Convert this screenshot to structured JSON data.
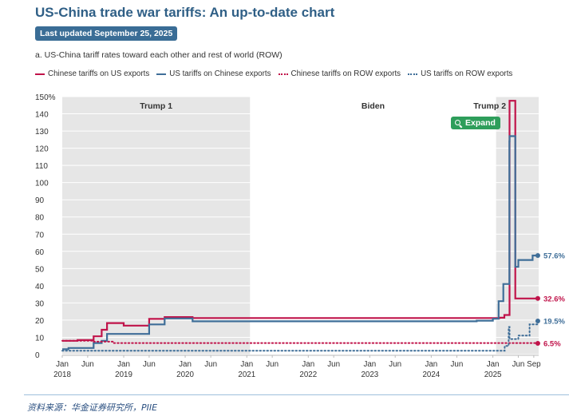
{
  "header": {
    "title": "US-China trade war tariffs: An up-to-date chart",
    "badge": "Last updated September 25, 2025",
    "subtitle": "a. US-China tariff rates toward each other and rest of world (ROW)"
  },
  "expand_button": {
    "label": "Expand",
    "icon": "magnifier-icon"
  },
  "source": "资料来源：华金证券研究所，PIIE",
  "colors": {
    "red": "#c0134a",
    "blue": "#3f6e98",
    "shade": "#e6e6e6",
    "title": "#2f5f86",
    "expand_bg": "#2e9e5b"
  },
  "chart_data": {
    "type": "line",
    "title": "US-China tariff rates toward each other and rest of world (ROW)",
    "ylim": [
      0,
      150
    ],
    "yticks": [
      0,
      10,
      20,
      30,
      40,
      50,
      60,
      70,
      80,
      90,
      100,
      110,
      120,
      130,
      140,
      150
    ],
    "ytick_labels": [
      "0",
      "10",
      "20",
      "30",
      "40",
      "50",
      "60",
      "70",
      "80",
      "90",
      "100",
      "110",
      "120",
      "130",
      "140",
      "150%"
    ],
    "xlim": [
      "2018-01-01",
      "2025-09-30"
    ],
    "x_ticks": [
      {
        "date": "2018-01-01",
        "label": "Jan",
        "year": "2018"
      },
      {
        "date": "2018-06-01",
        "label": "Jun",
        "year": ""
      },
      {
        "date": "2019-01-01",
        "label": "Jan",
        "year": "2019"
      },
      {
        "date": "2019-06-01",
        "label": "Jun",
        "year": ""
      },
      {
        "date": "2020-01-01",
        "label": "Jan",
        "year": "2020"
      },
      {
        "date": "2020-06-01",
        "label": "Jun",
        "year": ""
      },
      {
        "date": "2021-01-01",
        "label": "Jan",
        "year": "2021"
      },
      {
        "date": "2021-06-01",
        "label": "Jun",
        "year": ""
      },
      {
        "date": "2022-01-01",
        "label": "Jan",
        "year": "2022"
      },
      {
        "date": "2022-06-01",
        "label": "Jun",
        "year": ""
      },
      {
        "date": "2023-01-01",
        "label": "Jan",
        "year": "2023"
      },
      {
        "date": "2023-06-01",
        "label": "Jun",
        "year": ""
      },
      {
        "date": "2024-01-01",
        "label": "Jan",
        "year": "2024"
      },
      {
        "date": "2024-06-01",
        "label": "Jun",
        "year": ""
      },
      {
        "date": "2025-01-01",
        "label": "Jan",
        "year": "2025"
      },
      {
        "date": "2025-06-01",
        "label": "Jun",
        "year": ""
      },
      {
        "date": "2025-09-01",
        "label": "Sep",
        "year": ""
      }
    ],
    "periods": [
      {
        "name": "Trump 1",
        "start": "2018-01-01",
        "end": "2021-01-20",
        "shaded": true
      },
      {
        "name": "Biden",
        "start": "2021-01-20",
        "end": "2025-01-20",
        "shaded": false
      },
      {
        "name": "Trump 2",
        "start": "2025-01-20",
        "end": "2025-09-30",
        "shaded": true
      }
    ],
    "legend": "top",
    "grid": true,
    "series": [
      {
        "name": "Chinese tariffs on US exports",
        "style": "solid",
        "color": "#c0134a",
        "end_label": "32.6%",
        "points": [
          [
            "2018-01-01",
            8.0
          ],
          [
            "2018-04-02",
            8.4
          ],
          [
            "2018-07-06",
            10.6
          ],
          [
            "2018-08-23",
            14.4
          ],
          [
            "2018-09-24",
            18.3
          ],
          [
            "2019-01-01",
            16.8
          ],
          [
            "2019-06-01",
            20.7
          ],
          [
            "2019-09-01",
            21.8
          ],
          [
            "2019-12-31",
            21.8
          ],
          [
            "2020-02-14",
            21.2
          ],
          [
            "2025-02-10",
            21.4
          ],
          [
            "2025-03-10",
            23.0
          ],
          [
            "2025-04-04",
            23.0
          ],
          [
            "2025-04-10",
            147.6
          ],
          [
            "2025-05-14",
            147.6
          ],
          [
            "2025-05-14",
            32.6
          ],
          [
            "2025-09-25",
            32.6
          ]
        ]
      },
      {
        "name": "US tariffs on Chinese exports",
        "style": "solid",
        "color": "#3f6e98",
        "end_label": "57.6%",
        "points": [
          [
            "2018-01-01",
            3.1
          ],
          [
            "2018-02-07",
            3.8
          ],
          [
            "2018-07-06",
            6.7
          ],
          [
            "2018-08-23",
            8.0
          ],
          [
            "2018-09-24",
            12.0
          ],
          [
            "2019-06-01",
            17.5
          ],
          [
            "2019-09-01",
            21.0
          ],
          [
            "2020-02-14",
            19.3
          ],
          [
            "2024-09-27",
            19.7
          ],
          [
            "2025-01-01",
            20.8
          ],
          [
            "2025-02-04",
            31.0
          ],
          [
            "2025-03-04",
            41.0
          ],
          [
            "2025-04-09",
            124.0
          ],
          [
            "2025-04-10",
            127.0
          ],
          [
            "2025-05-14",
            51.0
          ],
          [
            "2025-06-01",
            55.0
          ],
          [
            "2025-08-25",
            57.6
          ],
          [
            "2025-09-25",
            57.6
          ]
        ]
      },
      {
        "name": "Chinese tariffs on ROW exports",
        "style": "dotted",
        "color": "#c0134a",
        "end_label": "6.5%",
        "points": [
          [
            "2018-01-01",
            8.0
          ],
          [
            "2018-07-01",
            7.5
          ],
          [
            "2018-11-01",
            6.7
          ],
          [
            "2025-09-25",
            6.5
          ]
        ]
      },
      {
        "name": "US tariffs on ROW exports",
        "style": "dotted",
        "color": "#3f6e98",
        "end_label": "19.5%",
        "points": [
          [
            "2018-01-01",
            2.2
          ],
          [
            "2025-02-01",
            2.2
          ],
          [
            "2025-03-12",
            5.0
          ],
          [
            "2025-04-05",
            16.0
          ],
          [
            "2025-04-10",
            9.0
          ],
          [
            "2025-06-01",
            11.0
          ],
          [
            "2025-08-07",
            17.5
          ],
          [
            "2025-09-25",
            19.5
          ]
        ]
      }
    ]
  }
}
